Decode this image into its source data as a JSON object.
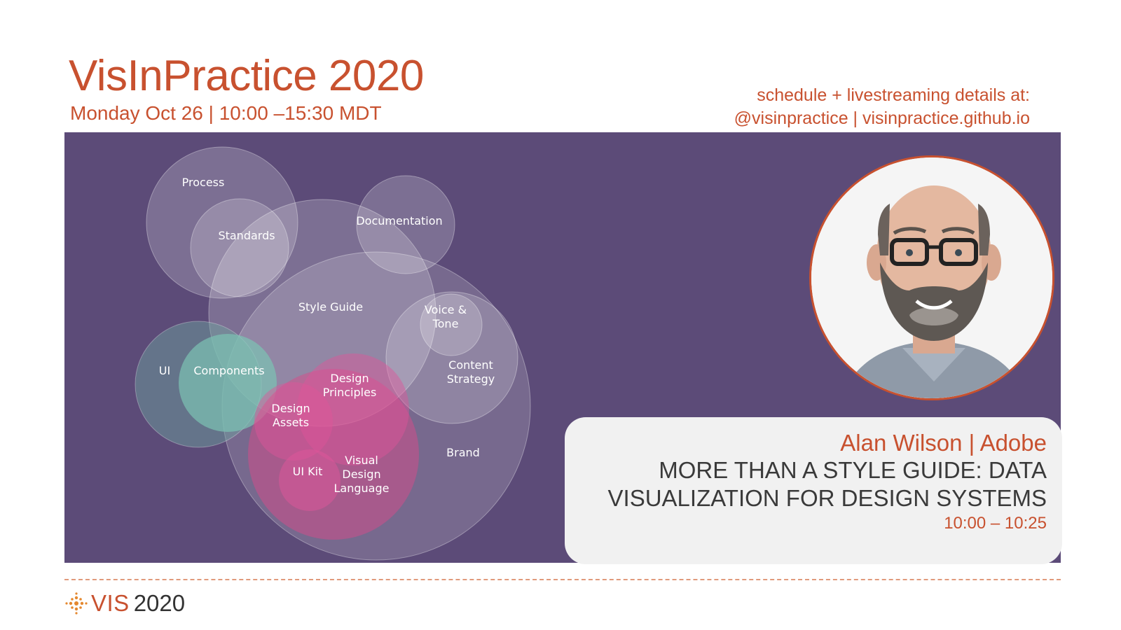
{
  "header": {
    "title": "VisInPractice 2020",
    "subtitle": "Monday Oct 26 | 10:00 –15:30 MDT",
    "info_line1": "schedule + livestreaming details at:",
    "info_line2": "@visinpractice | visinpractice.github.io"
  },
  "diagram": {
    "labels": {
      "process": "Process",
      "standards": "Standards",
      "documentation": "Documentation",
      "style_guide": "Style Guide",
      "voice_tone_1": "Voice &",
      "voice_tone_2": "Tone",
      "content_strategy_1": "Content",
      "content_strategy_2": "Strategy",
      "ui": "UI",
      "components": "Components",
      "design_principles_1": "Design",
      "design_principles_2": "Principles",
      "design_assets_1": "Design",
      "design_assets_2": "Assets",
      "ui_kit": "UI Kit",
      "visual_1": "Visual",
      "visual_2": "Design",
      "visual_3": "Language",
      "brand": "Brand"
    }
  },
  "talk": {
    "speaker": "Alan Wilson | Adobe",
    "title_line1": "MORE THAN A STYLE GUIDE: DATA",
    "title_line2": "VISUALIZATION FOR DESIGN SYSTEMS",
    "time": "10:00 – 10:25"
  },
  "footer": {
    "logo_vis": "VIS",
    "logo_year": "2020"
  },
  "colors": {
    "accent": "#c8512f",
    "panel": "#5c4b78",
    "card": "#f1f1f1"
  }
}
